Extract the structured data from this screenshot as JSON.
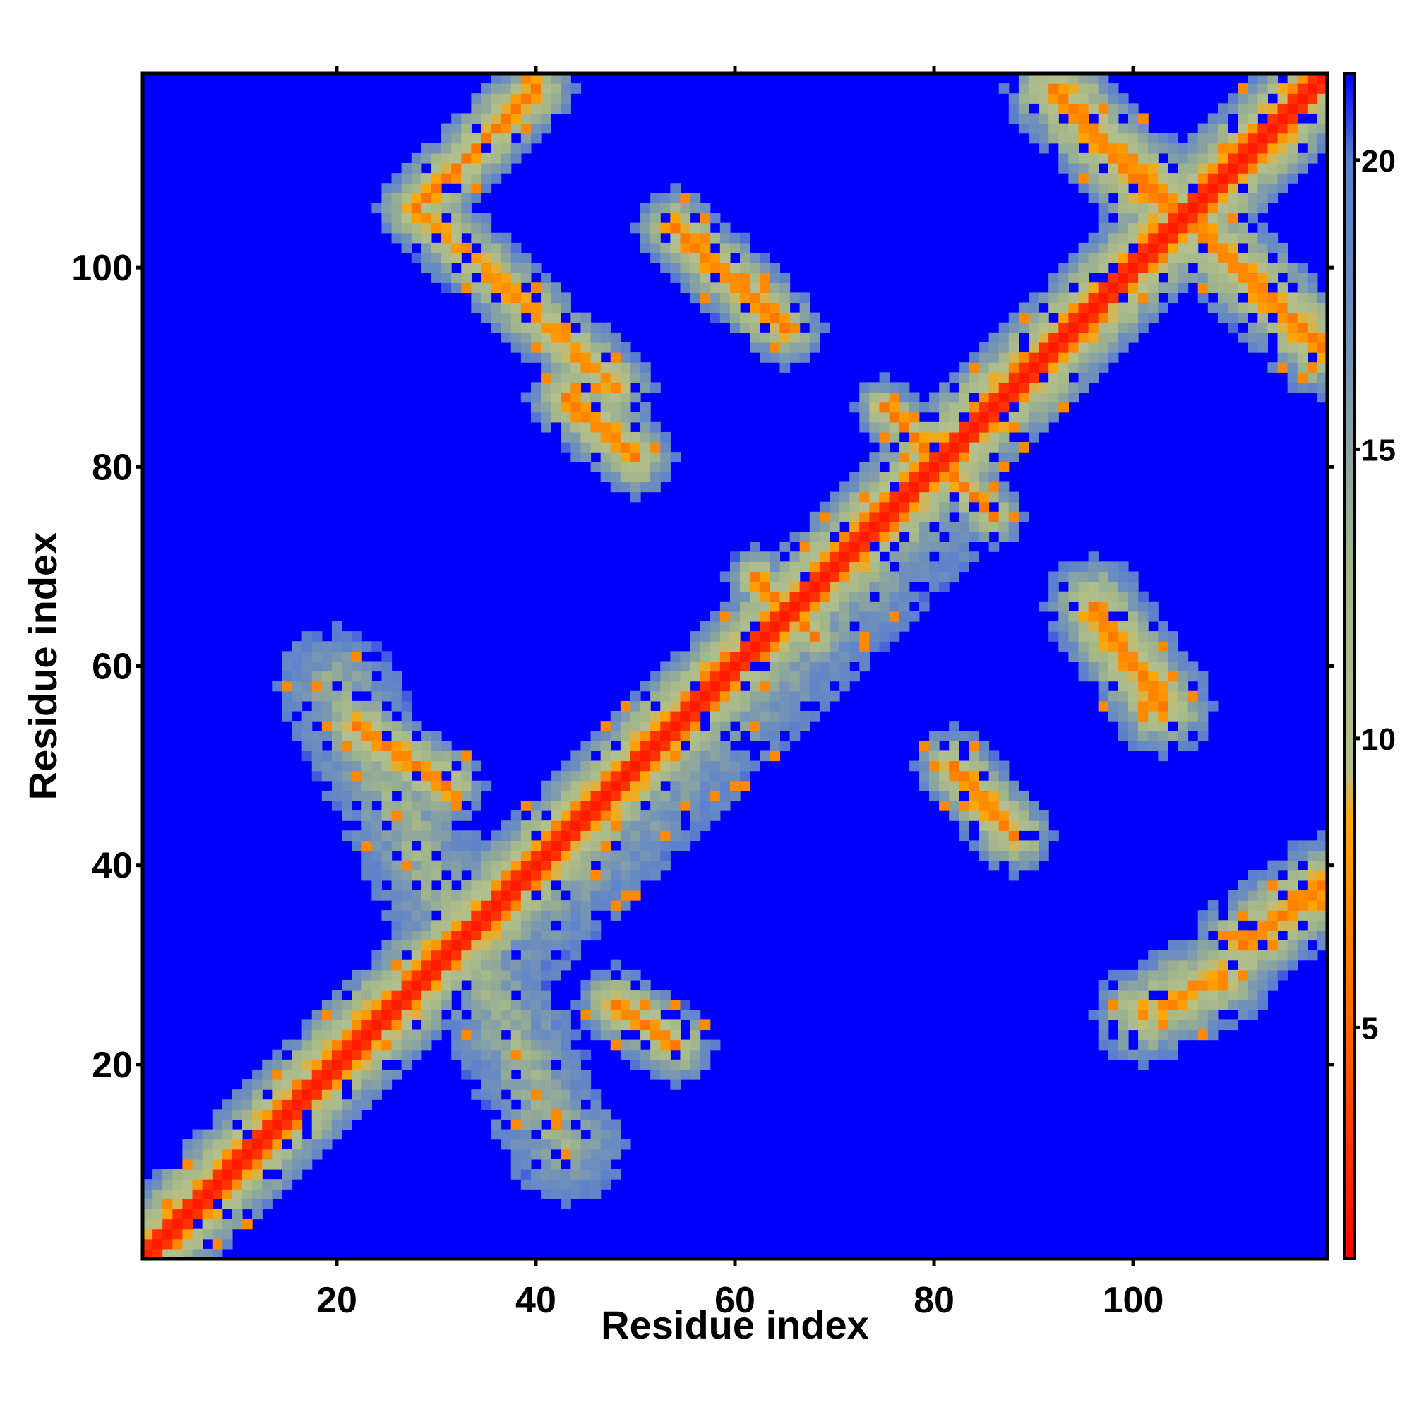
{
  "chart_data": {
    "type": "heatmap",
    "title": "",
    "xlabel": "Residue index",
    "ylabel": "Residue index",
    "n_residues": 119,
    "xlim": [
      1,
      119
    ],
    "ylim": [
      1,
      119
    ],
    "xticks": [
      20,
      40,
      60,
      80,
      100
    ],
    "yticks": [
      20,
      40,
      60,
      80,
      100
    ],
    "colorbar": {
      "range": [
        1,
        21.5
      ],
      "ticks": [
        5,
        10,
        15,
        20
      ],
      "stops": [
        {
          "value": 1,
          "color": "#ff0000"
        },
        {
          "value": 4.5,
          "color": "#ff5a00"
        },
        {
          "value": 8.5,
          "color": "#ffa500"
        },
        {
          "value": 9.5,
          "color": "#b4c08c"
        },
        {
          "value": 13,
          "color": "#a3b68a"
        },
        {
          "value": 17,
          "color": "#6f90bb"
        },
        {
          "value": 20,
          "color": "#5a7fcf"
        },
        {
          "value": 21.5,
          "color": "#0000ff"
        }
      ],
      "background_color": "#0000ff"
    },
    "diagonal": {
      "band_width": 1.5,
      "value": 2
    },
    "contact_streaks": [
      {
        "from": [
          3,
          3
        ],
        "to": [
          119,
          119
        ],
        "value": 4,
        "halo": 5.5
      },
      {
        "from": [
          20,
          58
        ],
        "to": [
          43,
          12
        ],
        "value": 13,
        "halo": 6
      },
      {
        "from": [
          39,
          35
        ],
        "to": [
          80,
          76
        ],
        "value": 14,
        "halo": 7
      },
      {
        "from": [
          28,
          106
        ],
        "to": [
          40,
          118
        ],
        "value": 6,
        "halo": 4
      },
      {
        "from": [
          28,
          106
        ],
        "to": [
          48,
          88
        ],
        "value": 7,
        "halo": 4
      },
      {
        "from": [
          22,
          54
        ],
        "to": [
          31,
          48
        ],
        "value": 6,
        "halo": 4
      },
      {
        "from": [
          43,
          87
        ],
        "to": [
          50,
          81
        ],
        "value": 6,
        "halo": 4
      },
      {
        "from": [
          48,
          26
        ],
        "to": [
          54,
          22
        ],
        "value": 6,
        "halo": 4
      },
      {
        "from": [
          54,
          104
        ],
        "to": [
          65,
          94
        ],
        "value": 6,
        "halo": 4
      },
      {
        "from": [
          62,
          69
        ],
        "to": [
          68,
          63
        ],
        "value": 6,
        "halo": 3
      },
      {
        "from": [
          75,
          86
        ],
        "to": [
          86,
          75
        ],
        "value": 6,
        "halo": 3
      },
      {
        "from": [
          82,
          50
        ],
        "to": [
          88,
          43
        ],
        "value": 6,
        "halo": 4
      },
      {
        "from": [
          92,
          118
        ],
        "to": [
          101,
          108
        ],
        "value": 6,
        "halo": 5
      },
      {
        "from": [
          101,
          109
        ],
        "to": [
          119,
          92
        ],
        "value": 6,
        "halo": 5
      },
      {
        "from": [
          96,
          66
        ],
        "to": [
          103,
          56
        ],
        "value": 6,
        "halo": 5
      },
      {
        "from": [
          101,
          25
        ],
        "to": [
          109,
          29
        ],
        "value": 7,
        "halo": 5
      },
      {
        "from": [
          111,
          32
        ],
        "to": [
          119,
          38
        ],
        "value": 6,
        "halo": 5
      }
    ],
    "noise_fraction": 0.1
  }
}
